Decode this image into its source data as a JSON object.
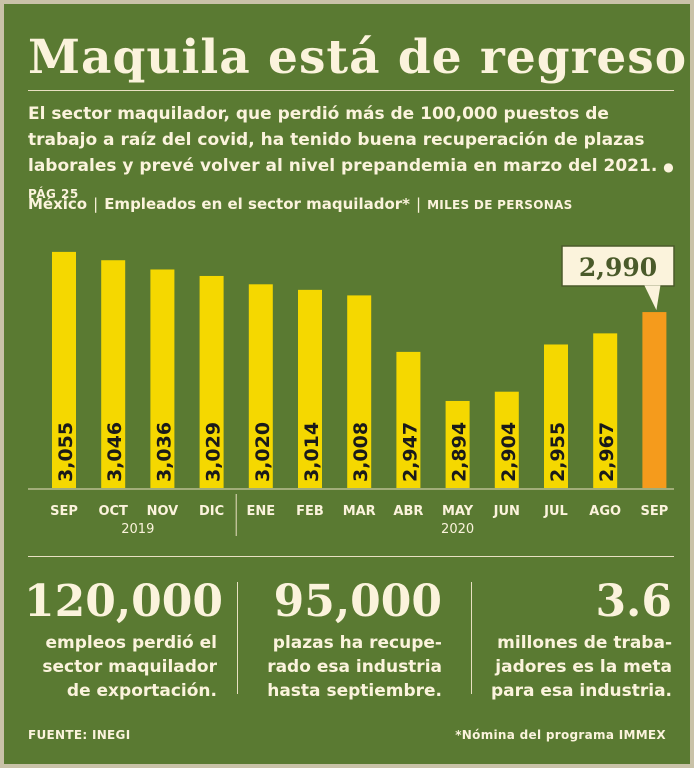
{
  "title": "Maquila está de regreso",
  "intro": {
    "text": "El sector maquilador, que perdió más de 100,000 puestos de trabajo a raíz del covid, ha tenido buena recuperación de plazas laborales y prevé volver al nivel prepandemia en marzo del 2021.",
    "bullet": "●",
    "page_ref": "PÁG 25"
  },
  "subtitle": {
    "country": "México",
    "metric": "Empleados en el sector maquilador*",
    "units": "MILES DE PERSONAS",
    "sep": "|"
  },
  "colors": {
    "bar": "#f5d800",
    "highlight": "#f59b1c",
    "background": "#5a7a32",
    "text": "#fbf3dc",
    "callout_bg": "#fbf3dc",
    "callout_text": "#4a5a2a"
  },
  "chart_data": {
    "type": "bar",
    "categories": [
      "SEP",
      "OCT",
      "NOV",
      "DIC",
      "ENE",
      "FEB",
      "MAR",
      "ABR",
      "MAY",
      "JUN",
      "JUL",
      "AGO",
      "SEP"
    ],
    "values": [
      3055,
      3046,
      3036,
      3029,
      3020,
      3014,
      3008,
      2947,
      2894,
      2904,
      2955,
      2967,
      2990
    ],
    "labels": [
      "3,055",
      "3,046",
      "3,036",
      "3,029",
      "3,020",
      "3,014",
      "3,008",
      "2,947",
      "2,894",
      "2,904",
      "2,955",
      "2,967",
      "2,990"
    ],
    "highlight_index": 12,
    "callout_label": "2,990",
    "year_groups": [
      {
        "label": "2019",
        "start": 0,
        "end": 3
      },
      {
        "label": "2020",
        "start": 4,
        "end": 12
      }
    ],
    "ylim": [
      2800,
      3070
    ],
    "units": "miles de personas"
  },
  "stats": [
    {
      "value": "120,000",
      "line1": "empleos perdió el",
      "line2": "sector maquilador",
      "line3": "de exportación."
    },
    {
      "value": "95,000",
      "line1": "plazas ha recupe-",
      "line2": "rado esa industria",
      "line3": "hasta septiembre."
    },
    {
      "value": "3.6",
      "line1": "millones de traba-",
      "line2": "jadores es la meta",
      "line3": "para esa industria."
    }
  ],
  "footer": {
    "source": "FUENTE: INEGI",
    "note": "*Nómina del programa IMMEX"
  }
}
